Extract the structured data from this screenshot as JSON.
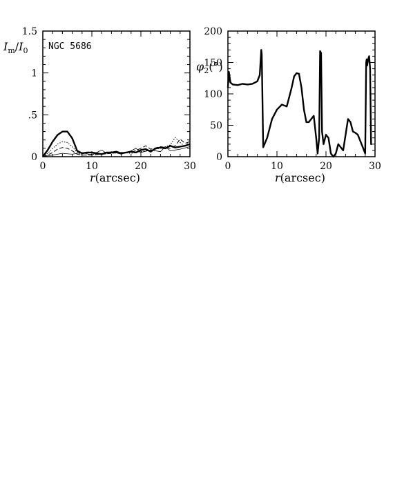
{
  "chart_data": [
    {
      "type": "line",
      "annotation": "NGC 5686",
      "xlabel": "r",
      "xlabel_unit": "(arcsec)",
      "ylabel": "I",
      "ylabel_sub_m": "m",
      "ylabel_slash": "/",
      "ylabel_sub_0": "0",
      "xlim": [
        0,
        30
      ],
      "ylim": [
        0,
        1.5
      ],
      "xticks": [
        {
          "v": 0,
          "label": "0"
        },
        {
          "v": 10,
          "label": "10"
        },
        {
          "v": 20,
          "label": "20"
        },
        {
          "v": 30,
          "label": "30"
        }
      ],
      "yticks": [
        {
          "v": 0,
          "label": "0"
        },
        {
          "v": 0.5,
          "label": ".5"
        },
        {
          "v": 1.0,
          "label": "1"
        },
        {
          "v": 1.5,
          "label": "1.5"
        }
      ],
      "grid": false,
      "series": [
        {
          "style": "solid-thick",
          "x": [
            0,
            1,
            2,
            3,
            4,
            5,
            6,
            7,
            8,
            9,
            10,
            11,
            12,
            13,
            14,
            15,
            16,
            17,
            18,
            19,
            20,
            21,
            22,
            23,
            24,
            25,
            26,
            27,
            28,
            29,
            30
          ],
          "y": [
            0,
            0.08,
            0.18,
            0.26,
            0.3,
            0.3,
            0.22,
            0.07,
            0.04,
            0.05,
            0.05,
            0.04,
            0.03,
            0.05,
            0.05,
            0.06,
            0.04,
            0.05,
            0.06,
            0.05,
            0.08,
            0.09,
            0.06,
            0.1,
            0.11,
            0.1,
            0.13,
            0.11,
            0.12,
            0.13,
            0.15
          ]
        },
        {
          "style": "dotted",
          "x": [
            0,
            1,
            2,
            3,
            4,
            5,
            6,
            7,
            8,
            9,
            10,
            12,
            14,
            16,
            18,
            20,
            22,
            24,
            26,
            27,
            28,
            29,
            30
          ],
          "y": [
            0,
            0.04,
            0.1,
            0.15,
            0.18,
            0.17,
            0.12,
            0.05,
            0.02,
            0.02,
            0.03,
            0.03,
            0.04,
            0.05,
            0.04,
            0.06,
            0.08,
            0.1,
            0.14,
            0.23,
            0.17,
            0.12,
            0.19
          ]
        },
        {
          "style": "dashed",
          "x": [
            0,
            1,
            2,
            3,
            4,
            5,
            6,
            7,
            8,
            10,
            12,
            14,
            16,
            18,
            20,
            21,
            22,
            24,
            26,
            27,
            28,
            29,
            30
          ],
          "y": [
            0,
            0.02,
            0.05,
            0.09,
            0.11,
            0.1,
            0.07,
            0.03,
            0.02,
            0.02,
            0.03,
            0.04,
            0.05,
            0.05,
            0.1,
            0.13,
            0.09,
            0.12,
            0.1,
            0.13,
            0.21,
            0.16,
            0.18
          ]
        },
        {
          "style": "solid-thin",
          "x": [
            0,
            2,
            4,
            6,
            8,
            10,
            11,
            12,
            13,
            14,
            16,
            18,
            19,
            20,
            22,
            24,
            25,
            26,
            28,
            30
          ],
          "y": [
            0,
            0.02,
            0.04,
            0.03,
            0.05,
            0.02,
            0.05,
            0.08,
            0.04,
            0.06,
            0.03,
            0.07,
            0.1,
            0.05,
            0.08,
            0.06,
            0.12,
            0.07,
            0.09,
            0.12
          ]
        }
      ]
    },
    {
      "type": "line",
      "xlabel": "r",
      "xlabel_unit": "(arcsec)",
      "ylabel": "φ",
      "ylabel_sub": "2",
      "ylabel_unit": "(°)",
      "xlim": [
        0,
        30
      ],
      "ylim": [
        0,
        200
      ],
      "xticks": [
        {
          "v": 0,
          "label": "0"
        },
        {
          "v": 10,
          "label": "10"
        },
        {
          "v": 20,
          "label": "20"
        },
        {
          "v": 30,
          "label": "30"
        }
      ],
      "yticks": [
        {
          "v": 0,
          "label": "0"
        },
        {
          "v": 50,
          "label": "50"
        },
        {
          "v": 100,
          "label": "100"
        },
        {
          "v": 150,
          "label": "150"
        },
        {
          "v": 200,
          "label": "200"
        }
      ],
      "grid": false,
      "series": [
        {
          "style": "solid-thick",
          "x": [
            0,
            0.2,
            0.5,
            1,
            2,
            3,
            4,
            5,
            6,
            6.5,
            6.8,
            6.9,
            7.2,
            8,
            9,
            10,
            11,
            12,
            12.5,
            13,
            13.5,
            14,
            14.5,
            15,
            15.5,
            16,
            16.5,
            17,
            17.5,
            18,
            18.3,
            18.6,
            18.8,
            19,
            19.2,
            19.5,
            20,
            20.5,
            21,
            21.5,
            22,
            22.5,
            23,
            23.5,
            24,
            24.5,
            25,
            25.5,
            26,
            26.5,
            27,
            27.5,
            28,
            28.2,
            28.3,
            28.4,
            28.6,
            28.8,
            29,
            29.2,
            29.4
          ],
          "y": [
            110,
            135,
            118,
            115,
            114,
            116,
            115,
            116,
            120,
            130,
            170,
            163,
            15,
            30,
            60,
            75,
            83,
            80,
            95,
            110,
            128,
            133,
            132,
            110,
            75,
            55,
            55,
            60,
            65,
            30,
            5,
            30,
            168,
            165,
            40,
            20,
            35,
            30,
            5,
            0,
            5,
            20,
            15,
            10,
            35,
            60,
            55,
            40,
            38,
            35,
            25,
            15,
            5,
            150,
            155,
            145,
            155,
            160,
            140,
            20,
            20
          ]
        }
      ]
    }
  ]
}
